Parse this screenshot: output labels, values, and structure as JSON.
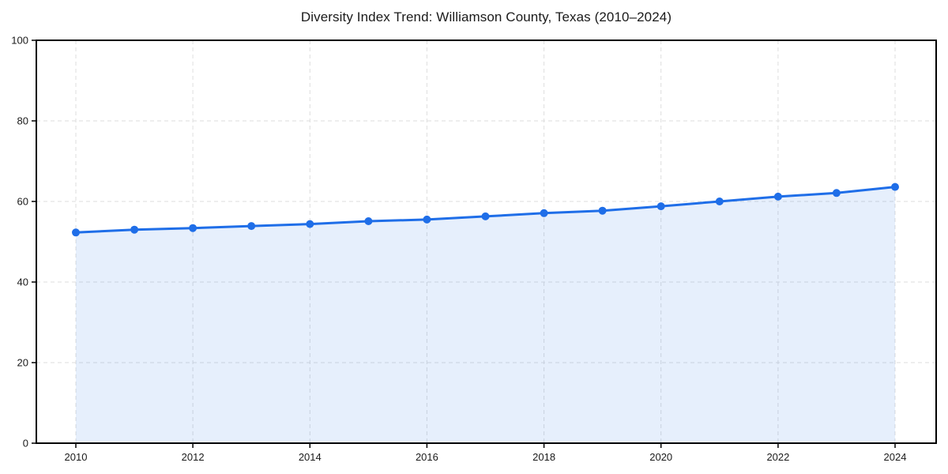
{
  "chart_data": {
    "type": "area",
    "title": "Diversity Index Trend: Williamson County, Texas (2010–2024)",
    "x": [
      2010,
      2011,
      2012,
      2013,
      2014,
      2015,
      2016,
      2017,
      2018,
      2019,
      2020,
      2021,
      2022,
      2023,
      2024
    ],
    "values": [
      52.3,
      53.0,
      53.4,
      53.9,
      54.4,
      55.1,
      55.5,
      56.3,
      57.1,
      57.7,
      58.8,
      60.0,
      61.2,
      62.1,
      63.6
    ],
    "xlabel": "",
    "ylabel": "",
    "xlim": [
      2010,
      2024
    ],
    "ylim": [
      0,
      100
    ],
    "xticks": [
      2010,
      2012,
      2014,
      2016,
      2018,
      2020,
      2022,
      2024
    ],
    "yticks": [
      0,
      20,
      40,
      60,
      80,
      100
    ],
    "grid": true,
    "grid_style": "dashed",
    "legend": "none",
    "marker": "circle",
    "colors": {
      "line": "#1f6ee8",
      "fill_opacity": 0.11,
      "grid": "#dedede",
      "axis": "#000000",
      "text": "#1a1a1a",
      "background": "#ffffff"
    }
  }
}
